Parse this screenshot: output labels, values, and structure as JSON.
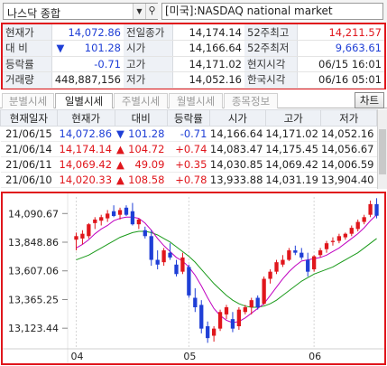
{
  "search": {
    "symbol": "나스닥 종합",
    "dropdown_icon": "chevron-down-icon",
    "search_icon": "search-icon",
    "market_label": "[미국]:NASDAQ national market"
  },
  "quote": {
    "rows": [
      {
        "l1": "현재가",
        "v1": "14,072.86",
        "l2": "전일종가",
        "v2": "14,174.14",
        "l3": "52주최고",
        "v3": "14,211.57"
      },
      {
        "l1": "대  비",
        "arrow": "▼",
        "v1": "101.28",
        "l2": "시가",
        "v2": "14,166.64",
        "l3": "52주최저",
        "v3": "9,663.61"
      },
      {
        "l1": "등락률",
        "v1": "-0.71",
        "l2": "고가",
        "v2": "14,171.02",
        "l3": "현지시각",
        "v3": "06/15 16:01"
      },
      {
        "l1": "거래량",
        "v1": "448,887,156",
        "l2": "저가",
        "v2": "14,052.16",
        "l3": "한국시각",
        "v3": "06/16 05:01"
      }
    ],
    "colors": {
      "down": "#1f3fd6",
      "up": "#e0161c"
    }
  },
  "tabs": [
    {
      "label": "분별시세",
      "active": false
    },
    {
      "label": "일별시세",
      "active": true
    },
    {
      "label": "주별시세",
      "active": false
    },
    {
      "label": "월별시세",
      "active": false
    },
    {
      "label": "종목정보",
      "active": false
    }
  ],
  "chart_button": "차트",
  "daily": {
    "headers": [
      "현재일자",
      "현재가",
      "대비",
      "등락률",
      "시가",
      "고가",
      "저가"
    ],
    "rows": [
      {
        "date": "21/06/15",
        "close": "14,072.86",
        "dir": "down",
        "change": "101.28",
        "rate": "-0.71",
        "open": "14,166.64",
        "high": "14,171.02",
        "low": "14,052.16"
      },
      {
        "date": "21/06/14",
        "close": "14,174.14",
        "dir": "up",
        "change": "104.72",
        "rate": "+0.74",
        "open": "14,083.47",
        "high": "14,175.45",
        "low": "14,056.67"
      },
      {
        "date": "21/06/11",
        "close": "14,069.42",
        "dir": "up",
        "change": "49.09",
        "rate": "+0.35",
        "open": "14,030.85",
        "high": "14,069.42",
        "low": "14,006.59"
      },
      {
        "date": "21/06/10",
        "close": "14,020.33",
        "dir": "up",
        "change": "108.58",
        "rate": "+0.78",
        "open": "13,933.88",
        "high": "14,031.19",
        "low": "13,904.40"
      }
    ]
  },
  "chart_data": {
    "type": "candlestick",
    "y_ticks": [
      "14,090.67",
      "13,848.86",
      "13,607.06",
      "13,365.25",
      "13,123.44"
    ],
    "x_ticks": [
      "04",
      "05",
      "06"
    ],
    "ylim": [
      12980,
      14230
    ],
    "colors": {
      "up": "#e0161c",
      "down": "#1f3fd6",
      "ma_short": "#c000c0",
      "ma_long": "#1a9a1a"
    },
    "candles": [
      {
        "o": 13870,
        "h": 13930,
        "l": 13780,
        "c": 13900
      },
      {
        "o": 13880,
        "h": 13950,
        "l": 13830,
        "c": 13920
      },
      {
        "o": 13900,
        "h": 14010,
        "l": 13880,
        "c": 14000
      },
      {
        "o": 14010,
        "h": 14060,
        "l": 13960,
        "c": 14040
      },
      {
        "o": 14030,
        "h": 14080,
        "l": 13990,
        "c": 14060
      },
      {
        "o": 14050,
        "h": 14120,
        "l": 14020,
        "c": 14090
      },
      {
        "o": 14110,
        "h": 14160,
        "l": 14060,
        "c": 14070
      },
      {
        "o": 14080,
        "h": 14140,
        "l": 14040,
        "c": 14120
      },
      {
        "o": 14140,
        "h": 14160,
        "l": 14070,
        "c": 14080
      },
      {
        "o": 14110,
        "h": 14180,
        "l": 13990,
        "c": 14000
      },
      {
        "o": 14000,
        "h": 14050,
        "l": 13960,
        "c": 14040
      },
      {
        "o": 13950,
        "h": 13980,
        "l": 13880,
        "c": 13900
      },
      {
        "o": 13900,
        "h": 13950,
        "l": 13650,
        "c": 13700
      },
      {
        "o": 13700,
        "h": 13780,
        "l": 13620,
        "c": 13660
      },
      {
        "o": 13680,
        "h": 13800,
        "l": 13650,
        "c": 13780
      },
      {
        "o": 13760,
        "h": 13840,
        "l": 13700,
        "c": 13720
      },
      {
        "o": 13660,
        "h": 13700,
        "l": 13560,
        "c": 13580
      },
      {
        "o": 13600,
        "h": 13760,
        "l": 13580,
        "c": 13720
      },
      {
        "o": 13640,
        "h": 13660,
        "l": 13380,
        "c": 13400
      },
      {
        "o": 13380,
        "h": 13460,
        "l": 13260,
        "c": 13300
      },
      {
        "o": 13320,
        "h": 13360,
        "l": 13080,
        "c": 13120
      },
      {
        "o": 13140,
        "h": 13180,
        "l": 13000,
        "c": 13040
      },
      {
        "o": 13060,
        "h": 13140,
        "l": 13010,
        "c": 13120
      },
      {
        "o": 13120,
        "h": 13280,
        "l": 13100,
        "c": 13260
      },
      {
        "o": 13240,
        "h": 13320,
        "l": 13200,
        "c": 13300
      },
      {
        "o": 13200,
        "h": 13260,
        "l": 13090,
        "c": 13120
      },
      {
        "o": 13140,
        "h": 13300,
        "l": 13110,
        "c": 13280
      },
      {
        "o": 13260,
        "h": 13320,
        "l": 13240,
        "c": 13300
      },
      {
        "o": 13300,
        "h": 13380,
        "l": 13240,
        "c": 13360
      },
      {
        "o": 13380,
        "h": 13400,
        "l": 13280,
        "c": 13300
      },
      {
        "o": 13330,
        "h": 13560,
        "l": 13320,
        "c": 13540
      },
      {
        "o": 13540,
        "h": 13620,
        "l": 13500,
        "c": 13600
      },
      {
        "o": 13600,
        "h": 13700,
        "l": 13580,
        "c": 13680
      },
      {
        "o": 13660,
        "h": 13740,
        "l": 13640,
        "c": 13700
      },
      {
        "o": 13700,
        "h": 13800,
        "l": 13690,
        "c": 13780
      },
      {
        "o": 13780,
        "h": 13820,
        "l": 13740,
        "c": 13760
      },
      {
        "o": 13760,
        "h": 13800,
        "l": 13700,
        "c": 13720
      },
      {
        "o": 13700,
        "h": 13760,
        "l": 13560,
        "c": 13600
      },
      {
        "o": 13620,
        "h": 13740,
        "l": 13600,
        "c": 13730
      },
      {
        "o": 13740,
        "h": 13800,
        "l": 13720,
        "c": 13780
      },
      {
        "o": 13790,
        "h": 13860,
        "l": 13760,
        "c": 13840
      },
      {
        "o": 13850,
        "h": 13890,
        "l": 13820,
        "c": 13860
      },
      {
        "o": 13860,
        "h": 13920,
        "l": 13840,
        "c": 13900
      },
      {
        "o": 13890,
        "h": 13930,
        "l": 13870,
        "c": 13920
      },
      {
        "o": 13920,
        "h": 13990,
        "l": 13900,
        "c": 13970
      },
      {
        "o": 13960,
        "h": 14040,
        "l": 13940,
        "c": 14020
      },
      {
        "o": 14020,
        "h": 14080,
        "l": 14000,
        "c": 14060
      },
      {
        "o": 14080,
        "h": 14200,
        "l": 14060,
        "c": 14170
      },
      {
        "o": 14170,
        "h": 14220,
        "l": 14050,
        "c": 14072
      }
    ],
    "ma_short": [
      13800,
      13830,
      13870,
      13920,
      13960,
      13990,
      14030,
      14050,
      14060,
      14060,
      14050,
      14010,
      13950,
      13880,
      13820,
      13770,
      13720,
      13690,
      13640,
      13570,
      13480,
      13380,
      13290,
      13230,
      13190,
      13170,
      13180,
      13210,
      13250,
      13290,
      13330,
      13400,
      13470,
      13540,
      13600,
      13650,
      13690,
      13700,
      13710,
      13720,
      13740,
      13770,
      13800,
      13840,
      13880,
      13920,
      13970,
      14030,
      14080
    ],
    "ma_long": [
      13700,
      13720,
      13740,
      13770,
      13800,
      13830,
      13860,
      13890,
      13910,
      13930,
      13940,
      13940,
      13930,
      13910,
      13880,
      13850,
      13810,
      13770,
      13730,
      13680,
      13620,
      13560,
      13500,
      13450,
      13400,
      13360,
      13330,
      13310,
      13300,
      13300,
      13310,
      13330,
      13360,
      13400,
      13440,
      13480,
      13520,
      13550,
      13580,
      13600,
      13620,
      13640,
      13670,
      13700,
      13730,
      13760,
      13800,
      13840,
      13880
    ]
  }
}
